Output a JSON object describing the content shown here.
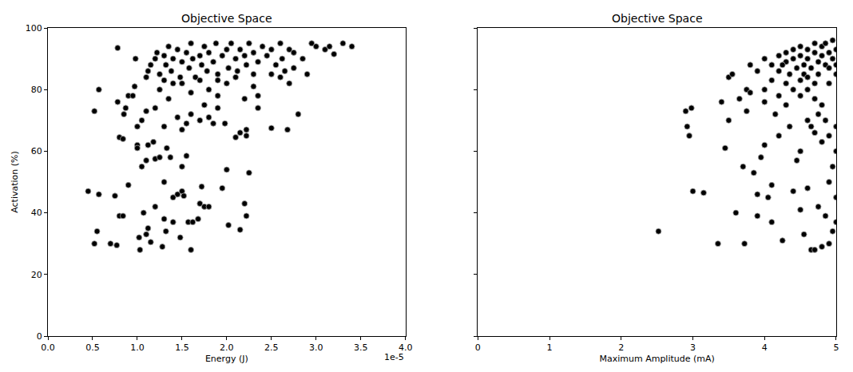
{
  "chart_data": [
    {
      "type": "scatter",
      "title": "Objective Space",
      "x_label": "Energy (J)",
      "y_label": "Activation (%)",
      "x_offset_label": "1e-5",
      "color": "#000000",
      "marker": "circle",
      "xlim": [
        0,
        4e-05
      ],
      "xticks": [
        {
          "value": 0,
          "label": "0.0"
        },
        {
          "value": 5e-06,
          "label": "0.5"
        },
        {
          "value": 1e-05,
          "label": "1.0"
        },
        {
          "value": 1.5e-05,
          "label": "1.5"
        },
        {
          "value": 2e-05,
          "label": "2.0"
        },
        {
          "value": 2.5e-05,
          "label": "2.5"
        },
        {
          "value": 3e-05,
          "label": "3.0"
        },
        {
          "value": 3.5e-05,
          "label": "3.5"
        },
        {
          "value": 4e-05,
          "label": "4.0"
        }
      ],
      "ylim": [
        0,
        100
      ],
      "yticks": [
        0,
        20,
        40,
        60,
        80,
        100
      ],
      "x": [
        4.5e-06,
        5.2e-06,
        5.5e-06,
        5.7e-06,
        5.2e-06,
        5.7e-06,
        7e-06,
        7.5e-06,
        7.7e-06,
        7.8e-06,
        7.8e-06,
        8e-06,
        8e-06,
        8.4e-06,
        8.4e-06,
        8.5e-06,
        8.7e-06,
        9e-06,
        9e-06,
        9.5e-06,
        9.7e-06,
        9.8e-06,
        1e-05,
        1e-05,
        1e-05,
        1.02e-05,
        1.03e-05,
        1.05e-05,
        1.07e-05,
        1.1e-05,
        1.1e-05,
        1.12e-05,
        1.12e-05,
        1.15e-05,
        1.18e-05,
        1.2e-05,
        1.2e-05,
        1.25e-05,
        1.28e-05,
        1.3e-05,
        1.3e-05,
        1.32e-05,
        1.33e-05,
        1.37e-05,
        1.4e-05,
        1.4e-05,
        1.45e-05,
        1.48e-05,
        1.5e-05,
        1.5e-05,
        1.52e-05,
        1.55e-05,
        1.57e-05,
        1.6e-05,
        1.62e-05,
        1.68e-05,
        1.7e-05,
        1.72e-05,
        1.75e-05,
        1.8e-05,
        1.95e-05,
        1.98e-05,
        2e-05,
        2.02e-05,
        2.15e-05,
        2.2e-05,
        2.22e-05,
        2.22e-05,
        2.25e-05,
        2.22e-05,
        2.5e-05,
        2.68e-05,
        2.8e-05,
        1.05e-05,
        1.1e-05,
        1.2e-05,
        1.3e-05,
        1.35e-05,
        1.45e-05,
        1.5e-05,
        1.55e-05,
        1.6e-05,
        1.7e-05,
        1.75e-05,
        1.8e-05,
        1.85e-05,
        1.9e-05,
        2.1e-05,
        2.15e-05,
        2.2e-05,
        2.35e-05,
        2.35e-05,
        1.25e-05,
        1.4e-05,
        1.6e-05,
        1.8e-05,
        1.9e-05,
        2e-05,
        2.3e-05,
        2.7e-05,
        2.75e-05,
        2.85e-05,
        2.9e-05,
        2.95e-05,
        3e-05,
        3.1e-05,
        3.15e-05,
        3.2e-05,
        3.3e-05,
        3.4e-05,
        1.1e-05,
        1.12e-05,
        1.15e-05,
        1.2e-05,
        1.22e-05,
        1.25e-05,
        1.3e-05,
        1.32e-05,
        1.35e-05,
        1.38e-05,
        1.4e-05,
        1.45e-05,
        1.48e-05,
        1.5e-05,
        1.55e-05,
        1.58e-05,
        1.6e-05,
        1.62e-05,
        1.65e-05,
        1.7e-05,
        1.72e-05,
        1.75e-05,
        1.78e-05,
        1.8e-05,
        1.85e-05,
        1.88e-05,
        1.9e-05,
        1.95e-05,
        2e-05,
        2.02e-05,
        2.05e-05,
        2.1e-05,
        2.12e-05,
        2.15e-05,
        2.2e-05,
        2.22e-05,
        2.25e-05,
        2.3e-05,
        2.35e-05,
        2.4e-05,
        2.45e-05,
        2.5e-05,
        2.55e-05,
        2.6e-05,
        2.62e-05,
        2.65e-05,
        2.7e-05,
        2.75e-05,
        1.3e-05,
        1.5e-05,
        1.7e-05,
        1.9e-05,
        2.1e-05,
        2.3e-05,
        2.5e-05,
        2.6e-05
      ],
      "values": [
        47,
        30,
        34,
        46,
        73,
        80,
        30,
        45.5,
        29.5,
        76,
        93.5,
        64.5,
        39,
        39,
        64,
        72,
        74,
        49,
        78,
        78,
        81,
        90,
        68,
        62,
        61,
        32,
        28,
        55,
        40,
        33,
        57,
        35,
        62,
        30.5,
        63,
        42,
        57.5,
        58,
        29,
        50,
        38,
        34,
        61,
        58,
        37,
        45,
        46,
        32,
        55,
        47,
        45.5,
        58.5,
        37,
        28,
        37,
        38,
        43,
        48.5,
        42,
        42,
        48,
        69,
        54,
        36,
        34.5,
        43,
        39,
        67,
        53,
        65,
        67.5,
        67,
        72,
        70,
        73,
        74,
        68,
        77,
        71,
        67,
        69,
        72,
        70,
        75,
        71,
        69,
        74,
        64.5,
        66,
        77,
        74,
        78,
        80,
        82,
        79,
        80,
        78,
        82,
        81,
        82,
        87,
        90,
        85,
        95,
        94,
        93,
        94,
        91.5,
        95,
        94,
        84,
        86,
        88,
        90,
        92,
        85,
        91,
        88,
        94,
        86,
        90,
        93,
        84,
        89,
        92,
        87,
        95,
        90,
        84,
        91,
        88,
        94,
        86,
        92,
        89,
        95,
        85,
        91,
        93,
        87,
        95,
        90,
        86,
        93,
        91,
        88,
        95,
        92,
        89,
        94,
        91,
        93,
        88,
        95,
        90,
        86,
        93,
        92,
        83,
        82,
        83,
        83,
        84,
        85,
        85,
        84
      ]
    },
    {
      "type": "scatter",
      "title": "Objective Space",
      "x_label": "Maximum Amplitude (mA)",
      "color": "#000000",
      "marker": "circle",
      "tick_labels": "x",
      "xlim": [
        0,
        5
      ],
      "xticks": [
        0,
        1,
        2,
        3,
        4,
        5
      ],
      "ylim": [
        0,
        100
      ],
      "yticks": [
        0,
        20,
        40,
        60,
        80,
        100
      ],
      "x": [
        2.52,
        2.9,
        2.92,
        2.95,
        2.98,
        3.0,
        3.15,
        3.35,
        3.4,
        3.45,
        3.5,
        3.5,
        3.55,
        3.6,
        3.65,
        3.7,
        3.72,
        3.75,
        3.75,
        3.8,
        3.85,
        3.9,
        3.9,
        3.95,
        4.0,
        4.0,
        4.05,
        4.1,
        4.1,
        4.15,
        4.2,
        4.25,
        4.3,
        4.35,
        4.4,
        4.45,
        4.5,
        4.5,
        4.55,
        4.6,
        4.65,
        4.7,
        4.75,
        4.8,
        4.85,
        4.9,
        4.95,
        5.0,
        4.6,
        4.65,
        4.7,
        4.75,
        4.8,
        4.85,
        4.9,
        4.95,
        5.0,
        5.0,
        4.9,
        5.0,
        4.5,
        4.6,
        4.7,
        4.8,
        4.2,
        4.0,
        3.8,
        4.1,
        3.9,
        4.0,
        4.1,
        4.2,
        4.2,
        4.3,
        4.3,
        4.35,
        4.4,
        4.4,
        4.45,
        4.5,
        4.5,
        4.55,
        4.55,
        4.6,
        4.6,
        4.65,
        4.7,
        4.7,
        4.75,
        4.75,
        4.8,
        4.8,
        4.85,
        4.85,
        4.9,
        4.9,
        4.95,
        4.95,
        5.0,
        5.0,
        5.0,
        4.3,
        4.5,
        4.7,
        4.9,
        4.4,
        4.6,
        4.25
      ],
      "values": [
        34,
        73,
        68,
        65,
        74,
        47,
        46.5,
        30,
        76,
        61,
        70,
        84,
        85,
        40,
        77,
        55,
        30,
        73,
        80,
        88,
        53,
        46,
        39,
        58,
        62,
        80,
        45,
        37,
        49,
        72,
        65,
        31,
        75,
        68,
        47,
        57,
        60,
        41,
        33,
        48,
        28,
        28,
        42,
        29,
        39,
        30,
        34,
        37,
        70,
        68,
        66,
        72,
        63,
        70,
        65,
        55,
        60,
        68,
        50,
        45,
        78,
        80,
        77,
        75,
        78,
        76,
        79,
        83,
        86,
        90,
        88,
        91,
        86,
        92,
        89,
        85,
        93,
        90,
        87,
        94,
        91,
        88,
        85,
        93,
        90,
        87,
        95,
        92,
        89,
        85,
        94,
        91,
        88,
        95,
        92,
        87,
        90,
        96,
        93,
        88,
        85,
        82,
        83,
        82,
        82,
        80,
        84,
        88
      ]
    }
  ]
}
